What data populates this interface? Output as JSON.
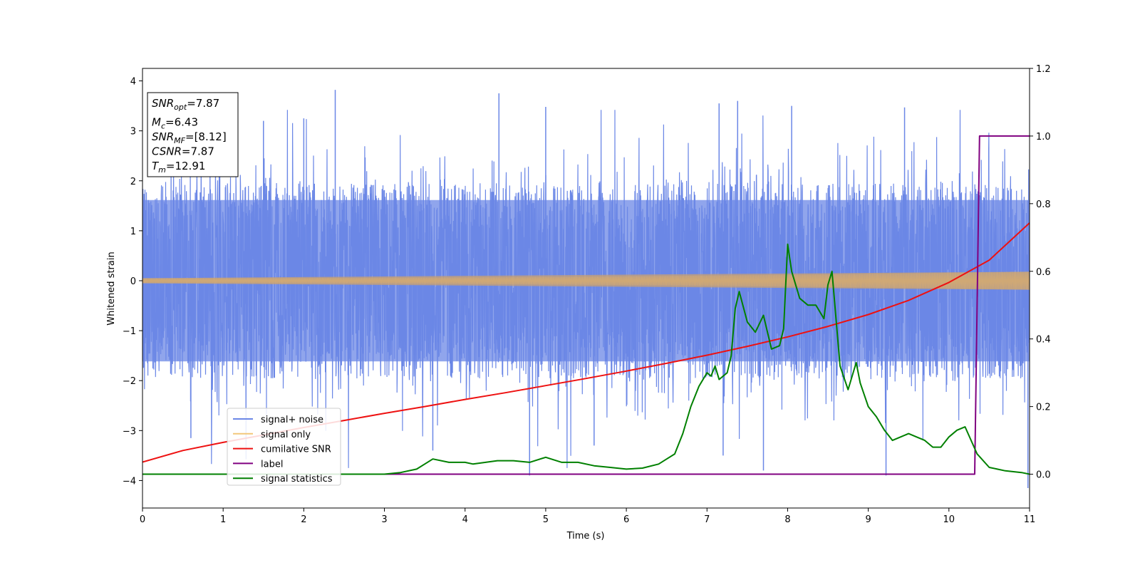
{
  "chart_data": {
    "type": "line",
    "xlabel": "Time (s)",
    "ylabel": "Whitened strain",
    "xlim": [
      0,
      11
    ],
    "ylim": [
      -4.55,
      4.25
    ],
    "y2lim": [
      -0.1,
      1.2
    ],
    "xticks": [
      "0",
      "1",
      "2",
      "3",
      "4",
      "5",
      "6",
      "7",
      "8",
      "9",
      "10",
      "11"
    ],
    "yticks": [
      "4",
      "3",
      "2",
      "1",
      "0",
      "−1",
      "−2",
      "−3",
      "−4"
    ],
    "y2ticks": [
      "1.2",
      "1.0",
      "0.8",
      "0.6",
      "0.4",
      "0.2",
      "0.0"
    ],
    "info_box": [
      {
        "main": "SNR",
        "sub": "opt",
        "value": "=7.87"
      },
      {
        "main": "M",
        "sub": "c",
        "value": "=6.43"
      },
      {
        "main": "SNR",
        "sub": "MF",
        "value": "=[8.12]"
      },
      {
        "main": "CSNR",
        "sub": "",
        "value": "=7.87"
      },
      {
        "main": "T",
        "sub": "m",
        "value": "=12.91"
      }
    ],
    "legend_position": "lower-left",
    "series": [
      {
        "name": "signal+ noise",
        "axis": "left",
        "color": "#6b87e6",
        "kind": "noise",
        "description_values": {
          "core_amplitude": 1.7,
          "peak_max": 3.82,
          "peak_min": -4.15
        },
        "spikes": [
          [
            2.39,
            3.82
          ],
          [
            4.42,
            3.75
          ],
          [
            5.0,
            3.48
          ],
          [
            7.15,
            3.55
          ],
          [
            7.38,
            3.6
          ],
          [
            8.05,
            3.5
          ],
          [
            9.45,
            3.47
          ],
          [
            2.0,
            3.25
          ],
          [
            1.5,
            3.2
          ],
          [
            0.6,
            -3.15
          ],
          [
            3.6,
            -3.4
          ],
          [
            4.8,
            -3.9
          ],
          [
            7.7,
            -3.8
          ],
          [
            9.22,
            -3.9
          ],
          [
            10.98,
            -4.15
          ],
          [
            7.2,
            -3.5
          ],
          [
            5.6,
            -3.3
          ]
        ]
      },
      {
        "name": "signal only",
        "axis": "left",
        "color": "#f2c77a",
        "kind": "chirp",
        "amplitude_start": 0.05,
        "amplitude_end": 0.18
      },
      {
        "name": "cumilative SNR",
        "axis": "right",
        "color": "#ee1111",
        "x": [
          0,
          0.5,
          1,
          1.5,
          2,
          2.5,
          3,
          3.5,
          4,
          4.5,
          5,
          5.5,
          6,
          6.5,
          7,
          7.5,
          8,
          8.5,
          9,
          9.5,
          10,
          10.5,
          11
        ],
        "values": [
          0.036,
          0.07,
          0.094,
          0.116,
          0.138,
          0.159,
          0.18,
          0.2,
          0.221,
          0.241,
          0.262,
          0.283,
          0.305,
          0.328,
          0.352,
          0.378,
          0.406,
          0.437,
          0.472,
          0.514,
          0.567,
          0.633,
          0.743
        ]
      },
      {
        "name": "label",
        "axis": "right",
        "color": "#800080",
        "x": [
          0,
          10.32,
          10.38,
          11
        ],
        "values": [
          0.0,
          0.0,
          1.0,
          1.0
        ]
      },
      {
        "name": "signal statistics",
        "axis": "right",
        "color": "#008000",
        "x": [
          0,
          1,
          2,
          3,
          3.2,
          3.4,
          3.5,
          3.6,
          3.8,
          4.0,
          4.1,
          4.4,
          4.6,
          4.8,
          5.0,
          5.2,
          5.4,
          5.6,
          5.8,
          6.0,
          6.2,
          6.4,
          6.5,
          6.6,
          6.7,
          6.8,
          6.9,
          7.0,
          7.05,
          7.1,
          7.15,
          7.2,
          7.25,
          7.3,
          7.35,
          7.4,
          7.5,
          7.6,
          7.7,
          7.8,
          7.9,
          7.95,
          8.0,
          8.05,
          8.15,
          8.25,
          8.35,
          8.45,
          8.5,
          8.55,
          8.65,
          8.75,
          8.85,
          8.9,
          9.0,
          9.1,
          9.2,
          9.3,
          9.4,
          9.5,
          9.6,
          9.7,
          9.8,
          9.9,
          10.0,
          10.1,
          10.2,
          10.35,
          10.5,
          10.7,
          10.9,
          11
        ],
        "values": [
          0.0,
          0.0,
          0.0,
          0.0,
          0.005,
          0.015,
          0.03,
          0.045,
          0.035,
          0.035,
          0.03,
          0.04,
          0.04,
          0.035,
          0.05,
          0.035,
          0.035,
          0.025,
          0.02,
          0.015,
          0.018,
          0.03,
          0.045,
          0.06,
          0.12,
          0.2,
          0.26,
          0.3,
          0.29,
          0.32,
          0.28,
          0.29,
          0.3,
          0.35,
          0.49,
          0.54,
          0.45,
          0.42,
          0.47,
          0.37,
          0.38,
          0.43,
          0.68,
          0.6,
          0.52,
          0.5,
          0.5,
          0.46,
          0.56,
          0.6,
          0.32,
          0.25,
          0.33,
          0.27,
          0.2,
          0.17,
          0.13,
          0.1,
          0.11,
          0.12,
          0.11,
          0.1,
          0.08,
          0.08,
          0.11,
          0.13,
          0.14,
          0.06,
          0.02,
          0.01,
          0.005,
          0.0
        ]
      }
    ]
  }
}
